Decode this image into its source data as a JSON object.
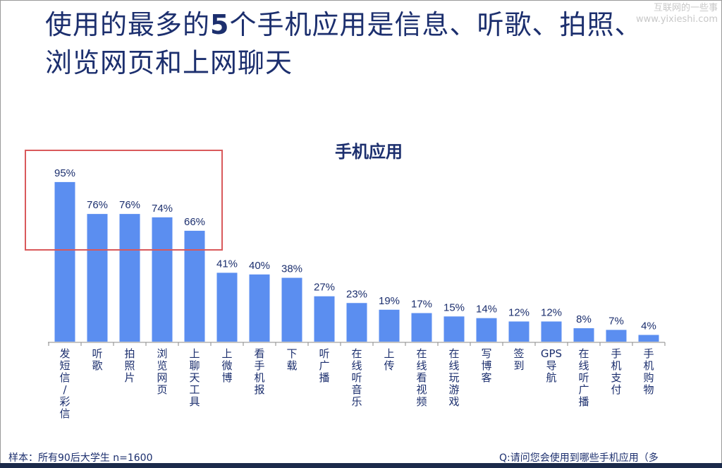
{
  "slide": {
    "title_pre": "使用的最多的",
    "title_num": "5",
    "title_post": "个手机应用是信息、听歌、拍照、浏览网页和上网聊天",
    "watermark_line1": "互联网的一些事",
    "watermark_line2": "www.yixieshi.com",
    "footer_left": "样本：所有90后大学生 n=1600",
    "footer_right": "Q:请问您会使用到哪些手机应用（多"
  },
  "colors": {
    "bar": "#5b8ef0",
    "title": "#1c2f6e",
    "highlight": "#d9595b"
  },
  "chart_data": {
    "type": "bar",
    "title": "手机应用",
    "categories": [
      "发短信/彩信",
      "听歌",
      "拍照片",
      "浏览网页",
      "上聊天工具",
      "上微博",
      "看手机报",
      "下载",
      "听广播",
      "在线听音乐",
      "上传",
      "在线看视频",
      "在线玩游戏",
      "写博客",
      "签到",
      "GPS导航",
      "在线听广播",
      "手机支付",
      "手机购物"
    ],
    "values": [
      95,
      76,
      76,
      74,
      66,
      41,
      40,
      38,
      27,
      23,
      19,
      17,
      15,
      14,
      12,
      12,
      8,
      7,
      4
    ],
    "unit": "%",
    "ylim": [
      0,
      100
    ],
    "grid": false,
    "highlighted_categories": [
      "发短信/彩信",
      "听歌",
      "拍照片",
      "浏览网页",
      "上聊天工具"
    ]
  }
}
